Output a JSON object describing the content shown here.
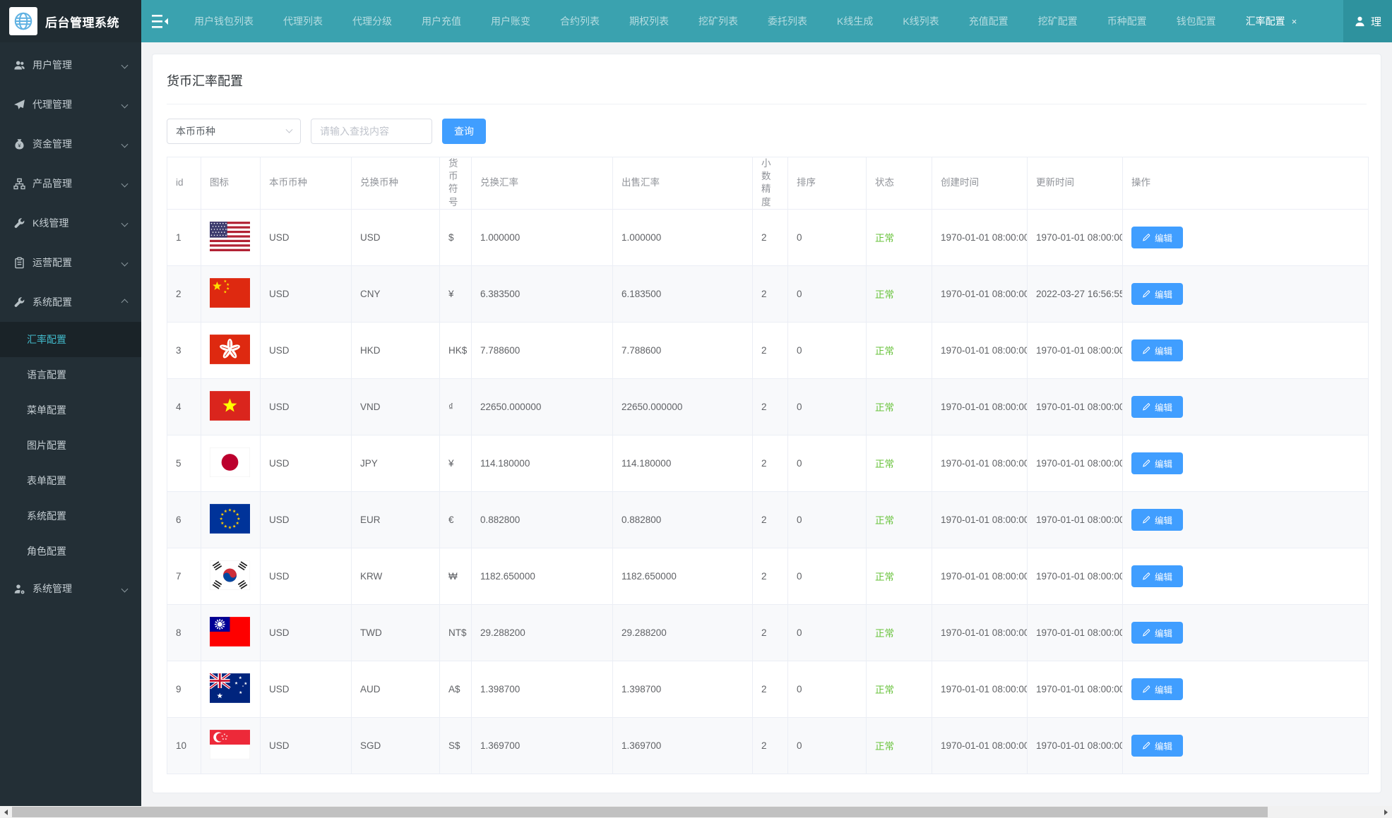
{
  "app": {
    "title": "后台管理系统"
  },
  "topnav": {
    "close_glyph": "×",
    "tabs": [
      {
        "label": "用户钱包列表"
      },
      {
        "label": "代理列表"
      },
      {
        "label": "代理分级"
      },
      {
        "label": "用户充值"
      },
      {
        "label": "用户账变"
      },
      {
        "label": "合约列表"
      },
      {
        "label": "期权列表"
      },
      {
        "label": "挖矿列表"
      },
      {
        "label": "委托列表"
      },
      {
        "label": "K线生成"
      },
      {
        "label": "K线列表"
      },
      {
        "label": "充值配置"
      },
      {
        "label": "挖矿配置"
      },
      {
        "label": "币种配置"
      },
      {
        "label": "钱包配置"
      },
      {
        "label": "汇率配置",
        "active": true,
        "closable": true
      }
    ],
    "user": {
      "label": "理",
      "icon": "user-avatar-icon"
    }
  },
  "sidebar": {
    "items": [
      {
        "label": "用户管理",
        "icon": "users-icon",
        "chevron": "down"
      },
      {
        "label": "代理管理",
        "icon": "paper-plane-icon",
        "chevron": "down"
      },
      {
        "label": "资金管理",
        "icon": "money-bag-icon",
        "chevron": "down"
      },
      {
        "label": "产品管理",
        "icon": "sitemap-icon",
        "chevron": "down"
      },
      {
        "label": "K线管理",
        "icon": "wrench-icon",
        "chevron": "down"
      },
      {
        "label": "运营配置",
        "icon": "clipboard-icon",
        "chevron": "down"
      },
      {
        "label": "系统配置",
        "icon": "gear-wrench-icon",
        "chevron": "up",
        "expanded": true,
        "children": [
          {
            "label": "汇率配置",
            "active": true
          },
          {
            "label": "语言配置"
          },
          {
            "label": "菜单配置"
          },
          {
            "label": "图片配置"
          },
          {
            "label": "表单配置"
          },
          {
            "label": "系统配置"
          },
          {
            "label": "角色配置"
          }
        ]
      },
      {
        "label": "系统管理",
        "icon": "user-gear-icon",
        "chevron": "down"
      }
    ]
  },
  "page": {
    "title": "货币汇率配置",
    "filter": {
      "base_currency_value": "本币币种",
      "search_placeholder": "请输入查找内容",
      "search_button_label": "查询"
    },
    "table": {
      "columns": [
        "id",
        "图标",
        "本币币种",
        "兑换币种",
        "货币符号",
        "兑换汇率",
        "出售汇率",
        "小数精度",
        "排序",
        "状态",
        "创建时间",
        "更新时间",
        "操作"
      ],
      "edit_button_label": "编辑",
      "rows": [
        {
          "id": "1",
          "flag": "us",
          "flag_icon": "usa-flag-icon",
          "base_currency": "USD",
          "quote_currency": "USD",
          "symbol": "$",
          "exchange_rate": "1.000000",
          "sell_rate": "1.000000",
          "precision": "2",
          "sort": "0",
          "status": "正常",
          "created_at": "1970-01-01 08:00:00",
          "updated_at": "1970-01-01 08:00:00"
        },
        {
          "id": "2",
          "flag": "cn",
          "flag_icon": "china-flag-icon",
          "base_currency": "USD",
          "quote_currency": "CNY",
          "symbol": "¥",
          "exchange_rate": "6.383500",
          "sell_rate": "6.183500",
          "precision": "2",
          "sort": "0",
          "status": "正常",
          "created_at": "1970-01-01 08:00:00",
          "updated_at": "2022-03-27 16:56:55"
        },
        {
          "id": "3",
          "flag": "hk",
          "flag_icon": "hongkong-flag-icon",
          "base_currency": "USD",
          "quote_currency": "HKD",
          "symbol": "HK$",
          "exchange_rate": "7.788600",
          "sell_rate": "7.788600",
          "precision": "2",
          "sort": "0",
          "status": "正常",
          "created_at": "1970-01-01 08:00:00",
          "updated_at": "1970-01-01 08:00:00"
        },
        {
          "id": "4",
          "flag": "vn",
          "flag_icon": "vietnam-flag-icon",
          "base_currency": "USD",
          "quote_currency": "VND",
          "symbol": "₫",
          "exchange_rate": "22650.000000",
          "sell_rate": "22650.000000",
          "precision": "2",
          "sort": "0",
          "status": "正常",
          "created_at": "1970-01-01 08:00:00",
          "updated_at": "1970-01-01 08:00:00"
        },
        {
          "id": "5",
          "flag": "jp",
          "flag_icon": "japan-flag-icon",
          "base_currency": "USD",
          "quote_currency": "JPY",
          "symbol": "¥",
          "exchange_rate": "114.180000",
          "sell_rate": "114.180000",
          "precision": "2",
          "sort": "0",
          "status": "正常",
          "created_at": "1970-01-01 08:00:00",
          "updated_at": "1970-01-01 08:00:00"
        },
        {
          "id": "6",
          "flag": "eu",
          "flag_icon": "eu-flag-icon",
          "base_currency": "USD",
          "quote_currency": "EUR",
          "symbol": "€",
          "exchange_rate": "0.882800",
          "sell_rate": "0.882800",
          "precision": "2",
          "sort": "0",
          "status": "正常",
          "created_at": "1970-01-01 08:00:00",
          "updated_at": "1970-01-01 08:00:00"
        },
        {
          "id": "7",
          "flag": "kr",
          "flag_icon": "korea-flag-icon",
          "base_currency": "USD",
          "quote_currency": "KRW",
          "symbol": "₩",
          "exchange_rate": "1182.650000",
          "sell_rate": "1182.650000",
          "precision": "2",
          "sort": "0",
          "status": "正常",
          "created_at": "1970-01-01 08:00:00",
          "updated_at": "1970-01-01 08:00:00"
        },
        {
          "id": "8",
          "flag": "tw",
          "flag_icon": "taiwan-flag-icon",
          "base_currency": "USD",
          "quote_currency": "TWD",
          "symbol": "NT$",
          "exchange_rate": "29.288200",
          "sell_rate": "29.288200",
          "precision": "2",
          "sort": "0",
          "status": "正常",
          "created_at": "1970-01-01 08:00:00",
          "updated_at": "1970-01-01 08:00:00"
        },
        {
          "id": "9",
          "flag": "au",
          "flag_icon": "australia-flag-icon",
          "base_currency": "USD",
          "quote_currency": "AUD",
          "symbol": "A$",
          "exchange_rate": "1.398700",
          "sell_rate": "1.398700",
          "precision": "2",
          "sort": "0",
          "status": "正常",
          "created_at": "1970-01-01 08:00:00",
          "updated_at": "1970-01-01 08:00:00"
        },
        {
          "id": "10",
          "flag": "sg",
          "flag_icon": "singapore-flag-icon",
          "base_currency": "USD",
          "quote_currency": "SGD",
          "symbol": "S$",
          "exchange_rate": "1.369700",
          "sell_rate": "1.369700",
          "precision": "2",
          "sort": "0",
          "status": "正常",
          "created_at": "1970-01-01 08:00:00",
          "updated_at": "1970-01-01 08:00:00"
        }
      ]
    }
  },
  "colors": {
    "navbar_teal": "#3aa2af",
    "sidebar_dark": "#232f36",
    "accent_blue": "#409eff",
    "status_green": "#67c23a",
    "active_menu_cyan": "#41b8c9"
  }
}
